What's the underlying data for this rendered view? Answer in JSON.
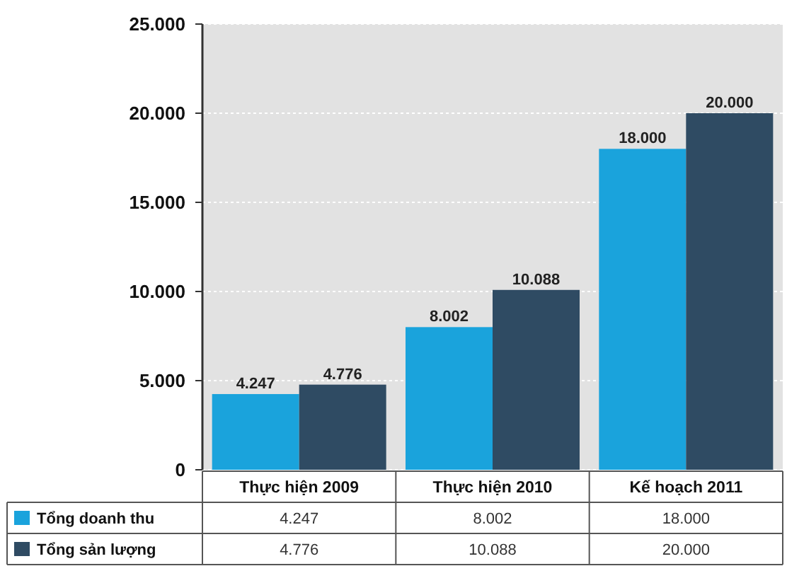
{
  "chart_data": {
    "type": "bar",
    "categories": [
      "Thực hiện 2009",
      "Thực hiện 2010",
      "Kế hoạch 2011"
    ],
    "series": [
      {
        "name": "Tổng doanh thu",
        "color": "#1aa3dc",
        "values": [
          4247,
          8002,
          18000
        ],
        "value_labels": [
          "4.247",
          "8.002",
          "18.000"
        ]
      },
      {
        "name": "Tổng sản lượng",
        "color": "#2f4b63",
        "values": [
          4776,
          10088,
          20000
        ],
        "value_labels": [
          "4.776",
          "10.088",
          "20.000"
        ]
      }
    ],
    "ylim": [
      0,
      25000
    ],
    "yticks": [
      {
        "value": 0,
        "label": "0"
      },
      {
        "value": 5000,
        "label": "5.000"
      },
      {
        "value": 10000,
        "label": "10.000"
      },
      {
        "value": 15000,
        "label": "15.000"
      },
      {
        "value": 20000,
        "label": "20.000"
      },
      {
        "value": 25000,
        "label": "25.000"
      }
    ],
    "grid": "y",
    "legend": "bottom left"
  }
}
